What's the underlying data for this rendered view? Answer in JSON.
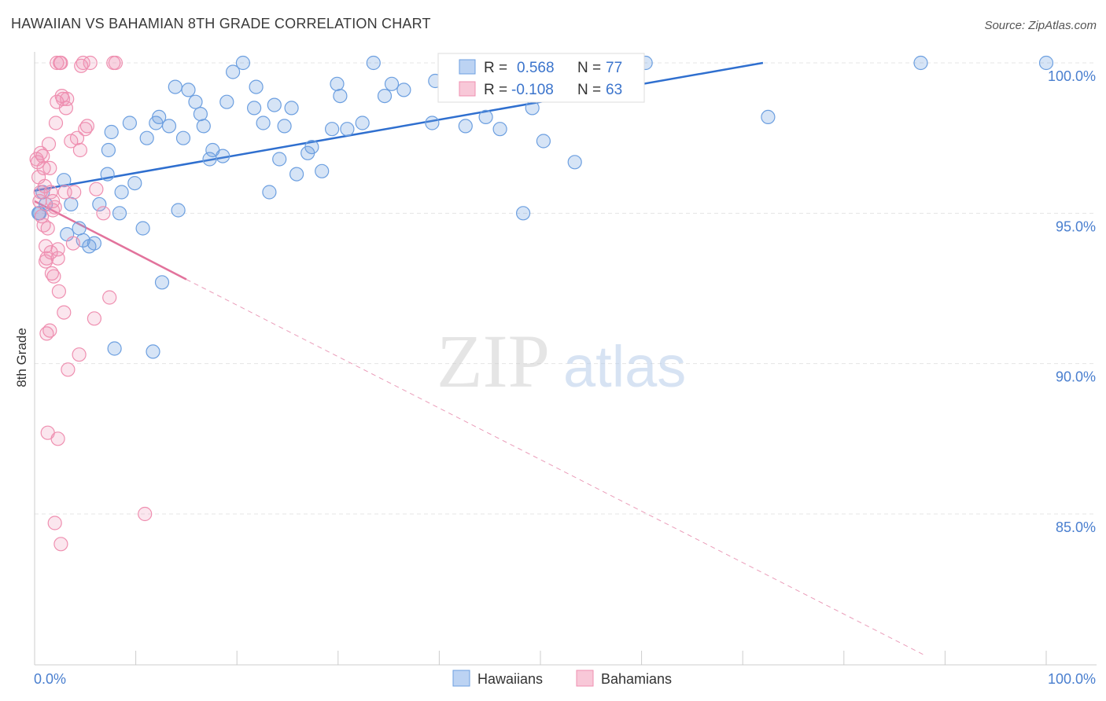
{
  "title": "HAWAIIAN VS BAHAMIAN 8TH GRADE CORRELATION CHART",
  "source": "Source: ZipAtlas.com",
  "watermark": {
    "zip": "ZIP",
    "atlas": "atlas"
  },
  "colors": {
    "blue": "#6c9fe0",
    "blue_line": "#2f6fcf",
    "pink": "#ef8fb0",
    "pink_line": "#e2739c",
    "tick_text": "#4a7fcf"
  },
  "legend_top": [
    {
      "r_label": "R =",
      "r_value": "0.568",
      "n_label": "N =",
      "n_value": "77",
      "color": "blue"
    },
    {
      "r_label": "R =",
      "r_value": "-0.108",
      "n_label": "N =",
      "n_value": "63",
      "color": "pink"
    }
  ],
  "legend_bottom": [
    {
      "label": "Hawaiians",
      "color": "blue"
    },
    {
      "label": "Bahamians",
      "color": "pink"
    }
  ],
  "chart_data": {
    "type": "scatter",
    "title": "HAWAIIAN VS BAHAMIAN 8TH GRADE CORRELATION CHART",
    "xlabel": "",
    "ylabel": "8th Grade",
    "xlim": [
      0,
      100
    ],
    "ylim": [
      80.3,
      100.5
    ],
    "x_tick_labels": [
      {
        "value": 0,
        "label": "0.0%"
      },
      {
        "value": 100,
        "label": "100.0%"
      }
    ],
    "y_tick_labels": [
      {
        "value": 100,
        "label": "100.0%"
      },
      {
        "value": 95,
        "label": "95.0%"
      },
      {
        "value": 90,
        "label": "90.0%"
      },
      {
        "value": 85,
        "label": "85.0%"
      }
    ],
    "grid": true,
    "legend_position": "top-center",
    "series": [
      {
        "name": "Hawaiians",
        "color": "#6c9fe0",
        "trend": {
          "x": [
            0,
            72
          ],
          "y": [
            95.75,
            100.0
          ]
        },
        "points": [
          [
            0.4,
            95.0
          ],
          [
            1.1,
            95.3
          ],
          [
            0.5,
            95.0
          ],
          [
            0.8,
            95.7
          ],
          [
            2.9,
            96.1
          ],
          [
            3.2,
            94.3
          ],
          [
            3.6,
            95.3
          ],
          [
            4.4,
            94.5
          ],
          [
            4.8,
            94.1
          ],
          [
            5.4,
            93.9
          ],
          [
            5.9,
            94.0
          ],
          [
            6.4,
            95.3
          ],
          [
            7.3,
            97.1
          ],
          [
            7.6,
            97.7
          ],
          [
            7.9,
            90.5
          ],
          [
            8.4,
            95.0
          ],
          [
            8.6,
            95.7
          ],
          [
            9.4,
            98.0
          ],
          [
            9.9,
            96.0
          ],
          [
            10.7,
            94.5
          ],
          [
            11.1,
            97.5
          ],
          [
            12.0,
            98.0
          ],
          [
            12.3,
            98.2
          ],
          [
            12.6,
            92.7
          ],
          [
            13.3,
            97.9
          ],
          [
            13.9,
            99.2
          ],
          [
            14.2,
            95.1
          ],
          [
            14.7,
            97.5
          ],
          [
            15.2,
            99.1
          ],
          [
            15.9,
            98.7
          ],
          [
            16.4,
            98.3
          ],
          [
            16.7,
            97.9
          ],
          [
            17.3,
            96.8
          ],
          [
            17.6,
            97.1
          ],
          [
            18.6,
            96.9
          ],
          [
            19.0,
            98.7
          ],
          [
            19.6,
            99.7
          ],
          [
            20.6,
            100.0
          ],
          [
            21.7,
            98.5
          ],
          [
            21.9,
            99.2
          ],
          [
            22.6,
            98.0
          ],
          [
            23.2,
            95.7
          ],
          [
            23.7,
            98.6
          ],
          [
            24.2,
            96.8
          ],
          [
            24.7,
            97.9
          ],
          [
            25.4,
            98.5
          ],
          [
            25.9,
            96.3
          ],
          [
            27.0,
            97.0
          ],
          [
            27.4,
            97.2
          ],
          [
            28.4,
            96.4
          ],
          [
            29.4,
            97.8
          ],
          [
            29.9,
            99.3
          ],
          [
            30.2,
            98.9
          ],
          [
            30.9,
            97.8
          ],
          [
            32.4,
            98.0
          ],
          [
            33.5,
            100.0
          ],
          [
            35.3,
            99.3
          ],
          [
            36.5,
            99.1
          ],
          [
            39.3,
            98.0
          ],
          [
            39.6,
            99.4
          ],
          [
            42.6,
            97.9
          ],
          [
            44.2,
            100.0
          ],
          [
            44.6,
            98.2
          ],
          [
            46.0,
            97.8
          ],
          [
            48.3,
            95.0
          ],
          [
            49.2,
            98.5
          ],
          [
            50.3,
            97.4
          ],
          [
            53.4,
            96.7
          ],
          [
            55.5,
            100.0
          ],
          [
            60.4,
            100.0
          ],
          [
            72.5,
            98.2
          ],
          [
            87.6,
            100.0
          ],
          [
            100.0,
            100.0
          ],
          [
            7.2,
            96.3
          ],
          [
            11.7,
            90.4
          ],
          [
            34.6,
            98.9
          ],
          [
            56.6,
            99.0
          ]
        ]
      },
      {
        "name": "Bahamians",
        "color": "#ef8fb0",
        "trend": {
          "x": [
            0,
            15
          ],
          "y": [
            95.4,
            92.8
          ]
        },
        "trend_dashed": {
          "x": [
            15,
            88
          ],
          "y": [
            92.8,
            80.3
          ]
        },
        "points": [
          [
            0.3,
            96.7
          ],
          [
            0.4,
            96.2
          ],
          [
            0.6,
            95.7
          ],
          [
            0.7,
            94.9
          ],
          [
            0.8,
            96.9
          ],
          [
            0.9,
            96.5
          ],
          [
            1.0,
            95.9
          ],
          [
            1.1,
            93.9
          ],
          [
            1.2,
            93.5
          ],
          [
            1.3,
            94.5
          ],
          [
            1.4,
            97.3
          ],
          [
            1.5,
            96.5
          ],
          [
            1.6,
            95.7
          ],
          [
            1.6,
            93.7
          ],
          [
            1.7,
            93.0
          ],
          [
            1.8,
            95.4
          ],
          [
            1.9,
            92.9
          ],
          [
            2.0,
            95.2
          ],
          [
            2.1,
            98.0
          ],
          [
            2.2,
            98.7
          ],
          [
            2.3,
            93.5
          ],
          [
            2.4,
            92.4
          ],
          [
            2.5,
            100.0
          ],
          [
            2.6,
            100.0
          ],
          [
            2.7,
            98.9
          ],
          [
            2.8,
            98.8
          ],
          [
            2.9,
            91.7
          ],
          [
            3.0,
            95.7
          ],
          [
            3.1,
            98.5
          ],
          [
            3.2,
            98.8
          ],
          [
            3.3,
            89.8
          ],
          [
            3.6,
            97.4
          ],
          [
            3.8,
            94.0
          ],
          [
            4.2,
            97.5
          ],
          [
            4.4,
            90.3
          ],
          [
            4.5,
            97.1
          ],
          [
            4.8,
            100.0
          ],
          [
            5.0,
            97.8
          ],
          [
            5.2,
            97.9
          ],
          [
            5.5,
            100.0
          ],
          [
            5.9,
            91.5
          ],
          [
            6.1,
            95.8
          ],
          [
            6.8,
            95.0
          ],
          [
            7.4,
            92.2
          ],
          [
            7.8,
            100.0
          ],
          [
            8.0,
            100.0
          ],
          [
            10.9,
            85.0
          ],
          [
            0.2,
            96.8
          ],
          [
            0.5,
            95.4
          ],
          [
            0.9,
            94.6
          ],
          [
            1.2,
            91.0
          ],
          [
            1.3,
            87.7
          ],
          [
            1.5,
            91.1
          ],
          [
            2.0,
            84.7
          ],
          [
            2.3,
            87.5
          ],
          [
            2.6,
            84.0
          ],
          [
            2.3,
            93.8
          ],
          [
            1.1,
            93.4
          ],
          [
            2.2,
            100.0
          ],
          [
            4.6,
            99.9
          ],
          [
            3.9,
            95.7
          ],
          [
            1.8,
            95.1
          ],
          [
            0.6,
            97.0
          ]
        ]
      }
    ]
  }
}
